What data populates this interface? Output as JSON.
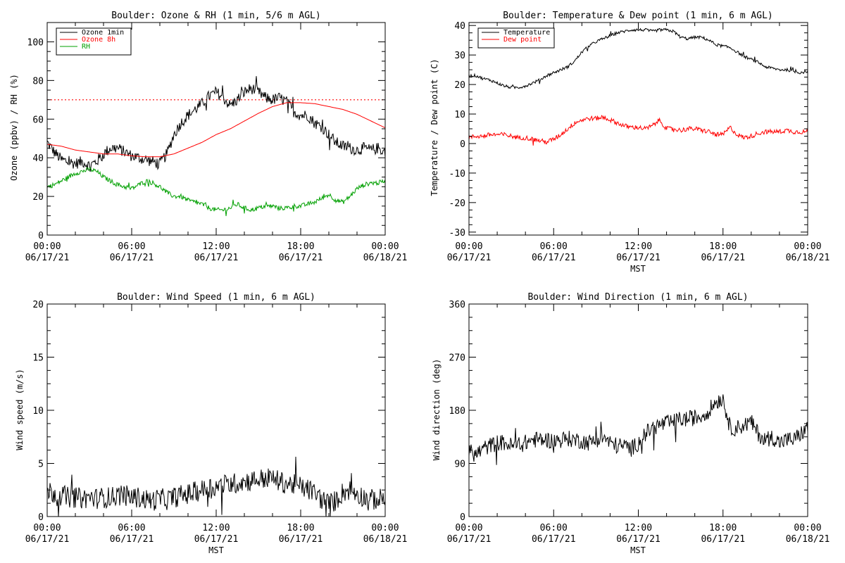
{
  "chart_data": [
    {
      "type": "line",
      "title": "Boulder: Ozone & RH (1 min, 5/6 m AGL)",
      "xlabel": "",
      "ylabel": "Ozone (ppbv) / RH (%)",
      "xticks": [
        "00:00\n06/17/21",
        "06:00\n06/17/21",
        "12:00\n06/17/21",
        "18:00\n06/17/21",
        "00:00\n06/18/21"
      ],
      "x_range_hours": [
        0,
        24
      ],
      "ylim": [
        0,
        110
      ],
      "yticks": [
        0,
        20,
        40,
        60,
        80,
        100
      ],
      "legend_position": "top-left",
      "reference_lines": [
        {
          "y": 70,
          "style": "dotted",
          "color": "#ff0000"
        }
      ],
      "series": [
        {
          "name": "Ozone 1min",
          "color": "#000000",
          "noise": 3,
          "x": [
            0,
            0.5,
            1,
            1.5,
            2,
            2.5,
            3,
            3.5,
            4,
            4.5,
            5,
            5.5,
            6,
            6.5,
            7,
            7.5,
            8,
            8.5,
            9,
            9.5,
            10,
            10.5,
            11,
            11.5,
            12,
            12.5,
            13,
            13.5,
            14,
            14.5,
            15,
            15.5,
            16,
            16.5,
            17,
            17.5,
            18,
            18.5,
            19,
            19.5,
            20,
            20.5,
            21,
            21.5,
            22,
            22.5,
            23,
            23.5,
            24
          ],
          "values": [
            48,
            43,
            39,
            38,
            37,
            38,
            36,
            38,
            42,
            45,
            45,
            43,
            41,
            40,
            39,
            38,
            37,
            42,
            52,
            58,
            62,
            65,
            68,
            72,
            74,
            71,
            67,
            70,
            74,
            76,
            74,
            71,
            70,
            71,
            69,
            64,
            62,
            62,
            58,
            56,
            52,
            48,
            46,
            45,
            44,
            45,
            44,
            45,
            43
          ]
        },
        {
          "name": "Ozone 8h",
          "color": "#ff0000",
          "noise": 0,
          "x": [
            0,
            1,
            2,
            3,
            4,
            5,
            6,
            7,
            8,
            9,
            10,
            11,
            12,
            13,
            14,
            15,
            16,
            17,
            18,
            19,
            20,
            21,
            22,
            23,
            24
          ],
          "values": [
            47,
            46,
            44,
            43,
            42,
            42,
            41,
            40.5,
            40.5,
            42,
            45,
            48,
            52,
            55,
            59,
            63,
            66.5,
            68.5,
            68.5,
            68,
            66.5,
            65,
            62.5,
            59,
            55.5
          ]
        },
        {
          "name": "RH",
          "color": "#00a000",
          "noise": 1.2,
          "x": [
            0,
            0.5,
            1,
            1.5,
            2,
            2.5,
            3,
            3.5,
            4,
            4.5,
            5,
            5.5,
            6,
            6.5,
            7,
            7.5,
            8,
            8.5,
            9,
            9.5,
            10,
            10.5,
            11,
            11.5,
            12,
            12.5,
            13,
            13.5,
            14,
            14.5,
            15,
            15.5,
            16,
            16.5,
            17,
            17.5,
            18,
            18.5,
            19,
            19.5,
            20,
            20.5,
            21,
            21.5,
            22,
            22.5,
            23,
            23.5,
            24
          ],
          "values": [
            25,
            26,
            28,
            30,
            32,
            33,
            34,
            33,
            30,
            28,
            26,
            25,
            24,
            26,
            28,
            27,
            25,
            22,
            20,
            20,
            18,
            17,
            16,
            14,
            13,
            13,
            14,
            16,
            14,
            13,
            14,
            15,
            15,
            14,
            14,
            15,
            15,
            16,
            17,
            19,
            21,
            18,
            17,
            20,
            24,
            26,
            27,
            27,
            28
          ]
        }
      ]
    },
    {
      "type": "line",
      "title": "Boulder: Temperature & Dew point (1 min, 6 m AGL)",
      "xlabel": "MST",
      "ylabel": "Temperature / Dew point (C)",
      "xticks": [
        "00:00\n06/17/21",
        "06:00\n06/17/21",
        "12:00\n06/17/21",
        "18:00\n06/17/21",
        "00:00\n06/18/21"
      ],
      "x_range_hours": [
        0,
        24
      ],
      "ylim": [
        -31,
        41
      ],
      "yticks": [
        -30,
        -20,
        -10,
        0,
        10,
        20,
        30,
        40
      ],
      "legend_position": "top-left",
      "series": [
        {
          "name": "Temperature",
          "color": "#000000",
          "noise": 0.5,
          "x": [
            0,
            0.5,
            1,
            1.5,
            2,
            2.5,
            3,
            3.5,
            4,
            4.5,
            5,
            5.5,
            6,
            6.5,
            7,
            7.5,
            8,
            8.5,
            9,
            9.5,
            10,
            10.5,
            11,
            11.5,
            12,
            12.5,
            13,
            13.5,
            14,
            14.5,
            15,
            15.5,
            16,
            16.5,
            17,
            17.5,
            18,
            18.5,
            19,
            19.5,
            20,
            20.5,
            21,
            21.5,
            22,
            22.5,
            23,
            23.5,
            24
          ],
          "values": [
            23,
            23,
            22,
            21.5,
            20.5,
            19.5,
            19,
            19,
            19.5,
            20.5,
            21.5,
            23,
            24,
            25,
            26,
            28,
            31,
            33,
            34.5,
            35.5,
            36.5,
            37.5,
            38,
            38.5,
            38.5,
            38.5,
            38,
            38.5,
            38.5,
            38,
            36,
            35.5,
            36,
            36,
            35,
            33.5,
            33,
            32.5,
            31,
            29.5,
            28.5,
            27.5,
            26,
            25.5,
            25,
            25,
            24.5,
            24,
            24.5
          ]
        },
        {
          "name": "Dew point",
          "color": "#ff0000",
          "noise": 0.8,
          "x": [
            0,
            0.5,
            1,
            1.5,
            2,
            2.5,
            3,
            3.5,
            4,
            4.5,
            5,
            5.5,
            6,
            6.5,
            7,
            7.5,
            8,
            8.5,
            9,
            9.5,
            10,
            10.5,
            11,
            11.5,
            12,
            12.5,
            13,
            13.5,
            14,
            14.5,
            15,
            15.5,
            16,
            16.5,
            17,
            17.5,
            18,
            18.5,
            19,
            19.5,
            20,
            20.5,
            21,
            21.5,
            22,
            22.5,
            23,
            23.5,
            24
          ],
          "values": [
            2,
            2.5,
            2.5,
            3,
            3,
            3,
            2.5,
            2,
            2,
            1.5,
            1,
            0.5,
            1.5,
            3,
            5,
            7,
            8,
            8.5,
            8.5,
            9,
            8,
            7,
            6,
            5.5,
            5.5,
            5,
            6,
            8,
            5,
            5,
            4.5,
            5,
            5,
            4.5,
            4,
            3,
            3,
            5.5,
            3,
            2,
            2.5,
            3.5,
            4,
            4,
            4,
            4.5,
            4,
            4,
            4
          ]
        }
      ]
    },
    {
      "type": "line",
      "title": "Boulder: Wind Speed (1 min, 6 m AGL)",
      "xlabel": "MST",
      "ylabel": "Wind speed (m/s)",
      "xticks": [
        "00:00\n06/17/21",
        "06:00\n06/17/21",
        "12:00\n06/17/21",
        "18:00\n06/17/21",
        "00:00\n06/18/21"
      ],
      "x_range_hours": [
        0,
        24
      ],
      "ylim": [
        0,
        20
      ],
      "yticks": [
        0,
        5,
        10,
        15,
        20
      ],
      "legend_position": "none",
      "series": [
        {
          "name": "",
          "color": "#000000",
          "noise": 1.0,
          "x": [
            0,
            0.5,
            1,
            1.5,
            2,
            2.5,
            3,
            3.5,
            4,
            4.5,
            5,
            5.5,
            6,
            6.5,
            7,
            7.5,
            8,
            8.5,
            9,
            9.5,
            10,
            10.5,
            11,
            11.5,
            12,
            12.5,
            13,
            13.5,
            14,
            14.5,
            15,
            15.5,
            16,
            16.5,
            17,
            17.5,
            18,
            18.5,
            19,
            19.5,
            20,
            20.5,
            21,
            21.5,
            22,
            22.5,
            23,
            23.5,
            24
          ],
          "values": [
            2.5,
            2.2,
            2,
            1.8,
            1.8,
            1.7,
            1.8,
            1.7,
            1.8,
            1.8,
            2,
            2,
            1.8,
            1.8,
            1.6,
            1.5,
            1.7,
            1.6,
            1.8,
            2,
            2.1,
            2.3,
            2.5,
            2.8,
            2.8,
            3,
            3,
            3.2,
            3.3,
            3.4,
            3.5,
            3.6,
            3.6,
            3.3,
            3.1,
            3,
            2.8,
            2.6,
            2.2,
            1.6,
            1.2,
            1.5,
            2.3,
            2.5,
            2.2,
            1.8,
            1.6,
            1.6,
            1.8
          ]
        }
      ]
    },
    {
      "type": "line",
      "title": "Boulder: Wind Direction (1 min, 6 m AGL)",
      "xlabel": "MST",
      "ylabel": "Wind direction (deg)",
      "xticks": [
        "00:00\n06/17/21",
        "06:00\n06/17/21",
        "12:00\n06/17/21",
        "18:00\n06/17/21",
        "00:00\n06/18/21"
      ],
      "x_range_hours": [
        0,
        24
      ],
      "ylim": [
        0,
        360
      ],
      "yticks": [
        0,
        90,
        180,
        270,
        360
      ],
      "legend_position": "none",
      "series": [
        {
          "name": "",
          "color": "#000000",
          "noise": 14,
          "x": [
            0,
            0.5,
            1,
            1.5,
            2,
            2.5,
            3,
            3.5,
            4,
            4.5,
            5,
            5.5,
            6,
            6.5,
            7,
            7.5,
            8,
            8.5,
            9,
            9.5,
            10,
            10.5,
            11,
            11.5,
            12,
            12.5,
            13,
            13.5,
            14,
            14.5,
            15,
            15.5,
            16,
            16.5,
            17,
            17.5,
            18,
            18.5,
            19,
            19.5,
            20,
            20.5,
            21,
            21.5,
            22,
            22.5,
            23,
            23.5,
            24
          ],
          "values": [
            110,
            105,
            115,
            120,
            125,
            125,
            120,
            120,
            125,
            130,
            130,
            130,
            128,
            130,
            132,
            130,
            128,
            125,
            130,
            135,
            125,
            120,
            120,
            115,
            125,
            140,
            150,
            155,
            158,
            160,
            165,
            165,
            168,
            170,
            180,
            195,
            200,
            150,
            150,
            155,
            160,
            140,
            130,
            135,
            125,
            130,
            130,
            140,
            150
          ]
        }
      ]
    }
  ]
}
